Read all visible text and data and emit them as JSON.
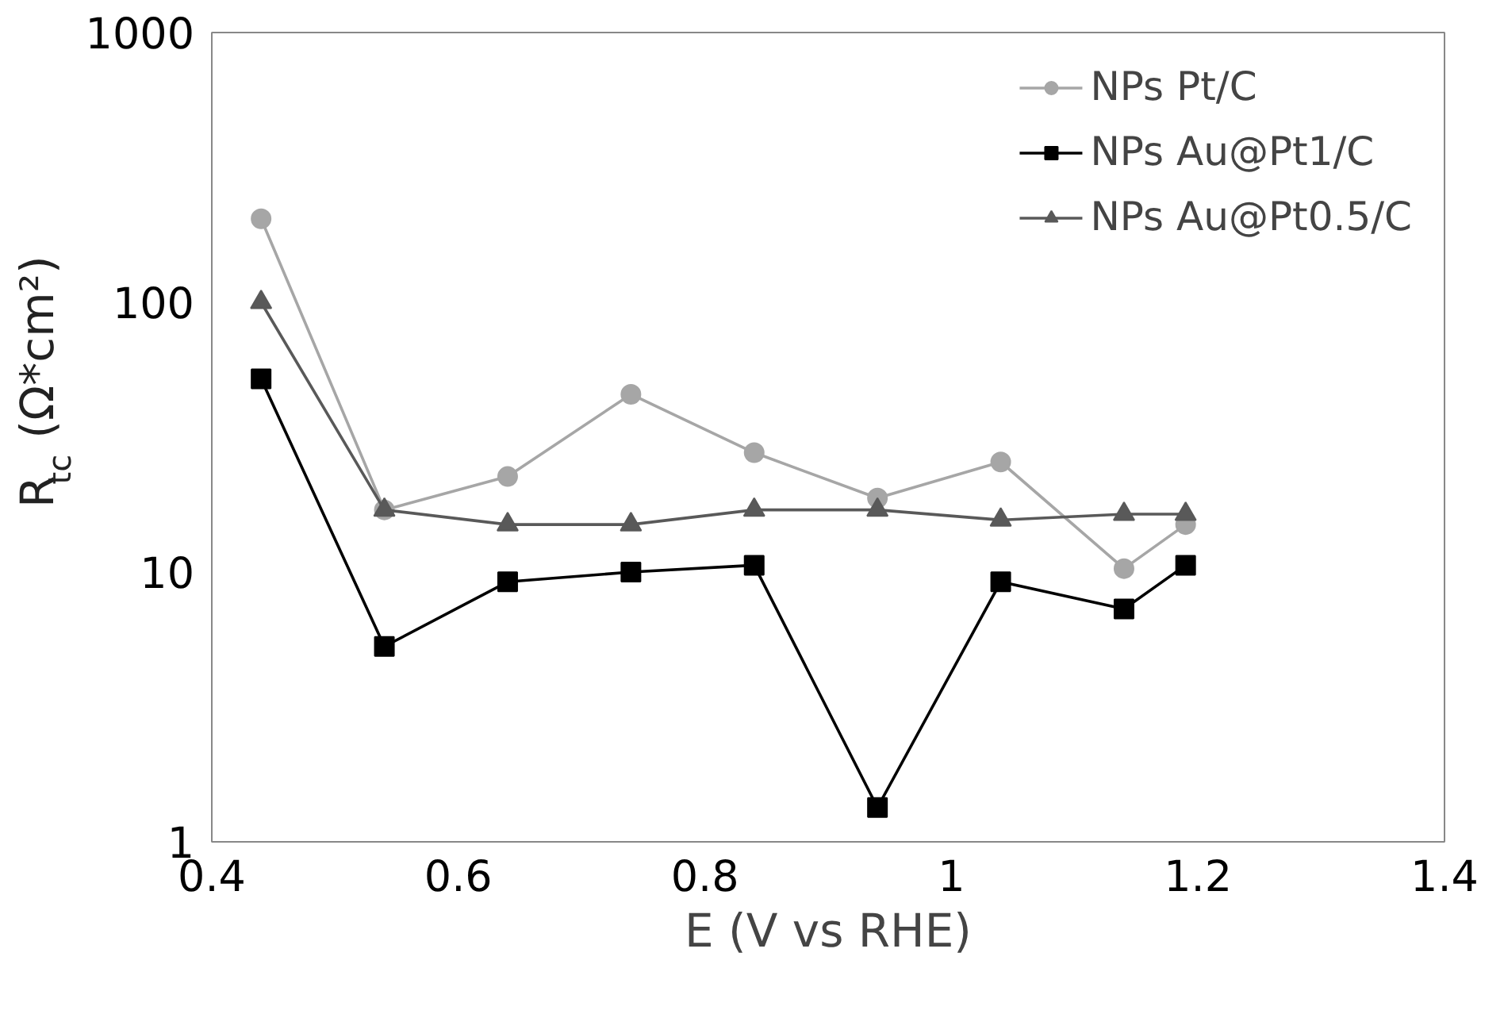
{
  "chart_data": {
    "type": "line",
    "xlabel": "E (V vs RHE)",
    "ylabel": "R$_{tc}$ (Ω*cm²)",
    "x": [
      0.44,
      0.54,
      0.64,
      0.74,
      0.84,
      0.94,
      1.04,
      1.14,
      1.19
    ],
    "series": [
      {
        "name": "NPs Pt/C",
        "color": "#a6a6a6",
        "marker": "circle",
        "values": [
          204,
          17,
          22.6,
          45.6,
          27.7,
          18.8,
          25.6,
          10.3,
          15
        ]
      },
      {
        "name": "NPs Au@Pt1/C",
        "color": "#000000",
        "marker": "square",
        "values": [
          52,
          5.3,
          9.2,
          10,
          10.6,
          1.34,
          9.2,
          7.3,
          10.6
        ]
      },
      {
        "name": "NPs Au@Pt0.5/C",
        "color": "#595959",
        "marker": "triangle",
        "values": [
          100,
          17,
          15,
          15,
          17,
          17,
          15.6,
          16.4,
          16.4
        ]
      }
    ],
    "log": "y",
    "xlim": [
      0.4,
      1.4
    ],
    "xticks": [
      0.4,
      0.6,
      0.8,
      1,
      1.2,
      1.4
    ],
    "ylim": [
      1,
      1000
    ],
    "yticks": [
      1,
      10,
      100,
      1000
    ],
    "grid": false,
    "legend": "top right",
    "line_style": "solid"
  }
}
